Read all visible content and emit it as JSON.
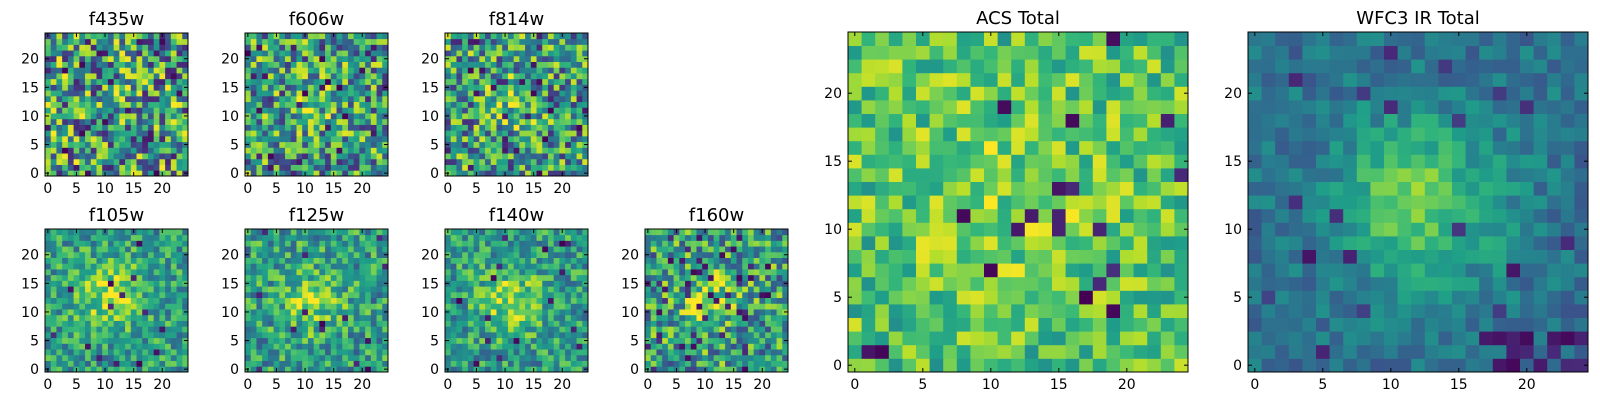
{
  "chart_data": [
    {
      "type": "heatmap",
      "title": "f435w",
      "grid_size": 25,
      "colormap": "viridis",
      "source_peak": [
        12,
        12
      ],
      "source_strength": 0.05,
      "source_sigma": 3.5,
      "noise_level": 0.9,
      "bad_pixels": "sparse",
      "xticks": [
        0,
        5,
        10,
        15,
        20
      ],
      "yticks": [
        0,
        5,
        10,
        15,
        20
      ],
      "xlim": [
        0,
        24
      ],
      "ylim": [
        0,
        24
      ]
    },
    {
      "type": "heatmap",
      "title": "f606w",
      "grid_size": 25,
      "colormap": "viridis",
      "source_peak": [
        12,
        12
      ],
      "source_strength": 0.35,
      "source_sigma": 3.0,
      "noise_level": 0.8,
      "bad_pixels": "sparse",
      "xticks": [
        0,
        5,
        10,
        15,
        20
      ],
      "yticks": [
        0,
        5,
        10,
        15,
        20
      ],
      "xlim": [
        0,
        24
      ],
      "ylim": [
        0,
        24
      ]
    },
    {
      "type": "heatmap",
      "title": "f814w",
      "grid_size": 25,
      "colormap": "viridis",
      "source_peak": [
        11,
        12
      ],
      "source_strength": 0.4,
      "source_sigma": 3.0,
      "noise_level": 0.8,
      "bad_pixels": "sparse",
      "xticks": [
        0,
        5,
        10,
        15,
        20
      ],
      "yticks": [
        0,
        5,
        10,
        15,
        20
      ],
      "xlim": [
        0,
        24
      ],
      "ylim": [
        0,
        24
      ]
    },
    {
      "type": "heatmap",
      "title": "f105w",
      "grid_size": 25,
      "colormap": "viridis",
      "source_peak": [
        11,
        13
      ],
      "source_strength": 0.75,
      "source_sigma": 4.0,
      "noise_level": 0.5,
      "bad_pixels": "few",
      "xticks": [
        0,
        5,
        10,
        15,
        20
      ],
      "yticks": [
        0,
        5,
        10,
        15,
        20
      ],
      "xlim": [
        0,
        24
      ],
      "ylim": [
        0,
        24
      ]
    },
    {
      "type": "heatmap",
      "title": "f125w",
      "grid_size": 25,
      "colormap": "viridis",
      "source_peak": [
        11,
        12
      ],
      "source_strength": 0.65,
      "source_sigma": 3.8,
      "noise_level": 0.55,
      "bad_pixels": "few",
      "xticks": [
        0,
        5,
        10,
        15,
        20
      ],
      "yticks": [
        0,
        5,
        10,
        15,
        20
      ],
      "xlim": [
        0,
        24
      ],
      "ylim": [
        0,
        24
      ]
    },
    {
      "type": "heatmap",
      "title": "f140w",
      "grid_size": 25,
      "colormap": "viridis",
      "source_peak": [
        11,
        12
      ],
      "source_strength": 0.7,
      "source_sigma": 3.8,
      "noise_level": 0.5,
      "bad_pixels": "few",
      "xticks": [
        0,
        5,
        10,
        15,
        20
      ],
      "yticks": [
        0,
        5,
        10,
        15,
        20
      ],
      "xlim": [
        0,
        24
      ],
      "ylim": [
        0,
        24
      ]
    },
    {
      "type": "heatmap",
      "title": "f160w",
      "grid_size": 25,
      "colormap": "viridis",
      "source_peak": [
        11,
        12
      ],
      "source_strength": 0.8,
      "source_sigma": 3.2,
      "noise_level": 0.7,
      "bad_pixels": "many",
      "xticks": [
        0,
        5,
        10,
        15,
        20
      ],
      "yticks": [
        0,
        5,
        10,
        15,
        20
      ],
      "xlim": [
        0,
        24
      ],
      "ylim": [
        0,
        24
      ]
    },
    {
      "type": "heatmap",
      "title": "ACS Total",
      "grid_size": 25,
      "colormap": "viridis",
      "source_peak": [
        11,
        13
      ],
      "source_strength": 0.35,
      "source_sigma": 4.5,
      "noise_level": 0.45,
      "baseline": 0.72,
      "bad_pixels": "few",
      "xticks": [
        0,
        5,
        10,
        15,
        20
      ],
      "yticks": [
        0,
        5,
        10,
        15,
        20
      ],
      "xlim": [
        0,
        24
      ],
      "ylim": [
        0,
        24
      ]
    },
    {
      "type": "heatmap",
      "title": "WFC3 IR Total",
      "grid_size": 25,
      "colormap": "viridis",
      "source_peak": [
        12,
        12
      ],
      "source_strength": 0.65,
      "source_sigma": 4.2,
      "noise_level": 0.25,
      "baseline": 0.38,
      "bad_pixels": "edge",
      "xticks": [
        0,
        5,
        10,
        15,
        20
      ],
      "yticks": [
        0,
        5,
        10,
        15,
        20
      ],
      "xlim": [
        0,
        24
      ],
      "ylim": [
        0,
        24
      ]
    }
  ]
}
